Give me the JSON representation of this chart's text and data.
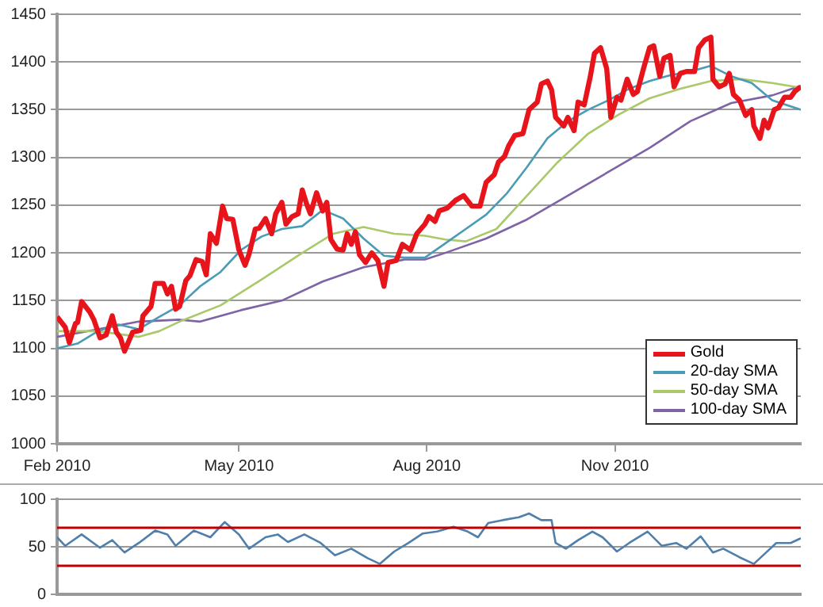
{
  "chart_data": [
    {
      "type": "line",
      "xlim": [
        "2010-02-01",
        "2011-01-31"
      ],
      "ylim": [
        1000,
        1450
      ],
      "xticks": [
        {
          "value": "2010-02-01",
          "label": "Feb 2010"
        },
        {
          "value": "2010-05-01",
          "label": "May 2010"
        },
        {
          "value": "2010-08-01",
          "label": "Aug 2010"
        },
        {
          "value": "2010-11-01",
          "label": "Nov 2010"
        }
      ],
      "yticks": [
        1000,
        1050,
        1100,
        1150,
        1200,
        1250,
        1300,
        1350,
        1400,
        1450
      ],
      "grid": "y",
      "legend": "bottom right",
      "series": [
        {
          "name": "Gold",
          "color": "#e8141b",
          "x": [
            "2010-02-01",
            "2010-02-05",
            "2010-02-07",
            "2010-02-10",
            "2010-02-11",
            "2010-02-13",
            "2010-02-17",
            "2010-02-19",
            "2010-02-22",
            "2010-02-25",
            "2010-02-28",
            "2010-03-02",
            "2010-03-04",
            "2010-03-06",
            "2010-03-10",
            "2010-03-14",
            "2010-03-15",
            "2010-03-19",
            "2010-03-21",
            "2010-03-25",
            "2010-03-27",
            "2010-03-29",
            "2010-03-31",
            "2010-04-02",
            "2010-04-05",
            "2010-04-07",
            "2010-04-10",
            "2010-04-13",
            "2010-04-15",
            "2010-04-17",
            "2010-04-20",
            "2010-04-23",
            "2010-04-25",
            "2010-04-28",
            "2010-05-01",
            "2010-05-04",
            "2010-05-06",
            "2010-05-09",
            "2010-05-11",
            "2010-05-14",
            "2010-05-17",
            "2010-05-19",
            "2010-05-22",
            "2010-05-24",
            "2010-05-27",
            "2010-05-30",
            "2010-06-01",
            "2010-06-03",
            "2010-06-05",
            "2010-06-08",
            "2010-06-11",
            "2010-06-13",
            "2010-06-15",
            "2010-06-18",
            "2010-06-21",
            "2010-06-23",
            "2010-06-25",
            "2010-06-27",
            "2010-06-29",
            "2010-07-02",
            "2010-07-05",
            "2010-07-08",
            "2010-07-11",
            "2010-07-13",
            "2010-07-17",
            "2010-07-20",
            "2010-07-24",
            "2010-07-27",
            "2010-07-31",
            "2010-08-02",
            "2010-08-05",
            "2010-08-07",
            "2010-08-11",
            "2010-08-15",
            "2010-08-19",
            "2010-08-23",
            "2010-08-27",
            "2010-08-30",
            "2010-09-03",
            "2010-09-05",
            "2010-09-08",
            "2010-09-10",
            "2010-09-13",
            "2010-09-17",
            "2010-09-20",
            "2010-09-24",
            "2010-09-26",
            "2010-09-29",
            "2010-10-01",
            "2010-10-03",
            "2010-10-07",
            "2010-10-09",
            "2010-10-12",
            "2010-10-14",
            "2010-10-17",
            "2010-10-20",
            "2010-10-22",
            "2010-10-25",
            "2010-10-28",
            "2010-10-30",
            "2010-11-02",
            "2010-11-04",
            "2010-11-07",
            "2010-11-10",
            "2010-11-12",
            "2010-11-15",
            "2010-11-18",
            "2010-11-20",
            "2010-11-23",
            "2010-11-25",
            "2010-11-28",
            "2010-11-30",
            "2010-12-03",
            "2010-12-06",
            "2010-12-10",
            "2010-12-12",
            "2010-12-15",
            "2010-12-18",
            "2010-12-19",
            "2010-12-22",
            "2010-12-25",
            "2010-12-27",
            "2010-12-29",
            "2011-01-01",
            "2011-01-04",
            "2011-01-07",
            "2011-01-08",
            "2011-01-11",
            "2011-01-13",
            "2011-01-15",
            "2011-01-18",
            "2011-01-20",
            "2011-01-23",
            "2011-01-26",
            "2011-01-28",
            "2011-01-31"
          ],
          "values": [
            1133,
            1122,
            1106,
            1126,
            1127,
            1149,
            1138,
            1130,
            1111,
            1114,
            1134,
            1117,
            1111,
            1097,
            1117,
            1119,
            1134,
            1144,
            1168,
            1168,
            1157,
            1165,
            1141,
            1144,
            1171,
            1176,
            1193,
            1191,
            1177,
            1220,
            1210,
            1249,
            1236,
            1235,
            1203,
            1187,
            1199,
            1225,
            1226,
            1236,
            1220,
            1241,
            1253,
            1230,
            1238,
            1241,
            1266,
            1252,
            1241,
            1263,
            1244,
            1253,
            1214,
            1204,
            1203,
            1220,
            1209,
            1222,
            1198,
            1190,
            1200,
            1192,
            1165,
            1190,
            1192,
            1209,
            1203,
            1220,
            1230,
            1238,
            1233,
            1244,
            1247,
            1255,
            1260,
            1249,
            1249,
            1274,
            1282,
            1295,
            1301,
            1312,
            1323,
            1325,
            1350,
            1358,
            1377,
            1380,
            1371,
            1342,
            1333,
            1342,
            1328,
            1358,
            1355,
            1385,
            1409,
            1415,
            1393,
            1342,
            1363,
            1360,
            1382,
            1366,
            1369,
            1393,
            1415,
            1417,
            1385,
            1404,
            1407,
            1374,
            1388,
            1390,
            1390,
            1415,
            1423,
            1426,
            1382,
            1374,
            1377,
            1388,
            1366,
            1360,
            1344,
            1350,
            1333,
            1320,
            1339,
            1331,
            1350,
            1352,
            1363,
            1363,
            1369,
            1374
          ]
        },
        {
          "name": "20-day SMA",
          "color": "#4a9bb5",
          "x": [
            "2010-02-01",
            "2010-02-11",
            "2010-02-21",
            "2010-03-03",
            "2010-03-13",
            "2010-03-23",
            "2010-04-02",
            "2010-04-12",
            "2010-04-22",
            "2010-05-02",
            "2010-05-12",
            "2010-05-22",
            "2010-06-01",
            "2010-06-11",
            "2010-06-21",
            "2010-07-01",
            "2010-07-11",
            "2010-07-21",
            "2010-07-31",
            "2010-08-10",
            "2010-08-20",
            "2010-08-30",
            "2010-09-09",
            "2010-09-19",
            "2010-09-29",
            "2010-10-09",
            "2010-10-19",
            "2010-10-29",
            "2010-11-08",
            "2010-11-18",
            "2010-11-28",
            "2010-12-08",
            "2010-12-18",
            "2010-12-28",
            "2011-01-07",
            "2011-01-17",
            "2011-01-31"
          ],
          "values": [
            1100,
            1105,
            1118,
            1125,
            1120,
            1133,
            1145,
            1165,
            1180,
            1203,
            1217,
            1225,
            1228,
            1245,
            1236,
            1215,
            1197,
            1195,
            1195,
            1210,
            1225,
            1240,
            1262,
            1290,
            1320,
            1338,
            1350,
            1360,
            1372,
            1380,
            1386,
            1390,
            1396,
            1385,
            1378,
            1360,
            1350
          ]
        },
        {
          "name": "50-day SMA",
          "color": "#a9c96a",
          "x": [
            "2010-02-01",
            "2010-02-21",
            "2010-03-13",
            "2010-03-23",
            "2010-04-02",
            "2010-04-22",
            "2010-05-12",
            "2010-06-01",
            "2010-06-16",
            "2010-07-01",
            "2010-07-16",
            "2010-07-31",
            "2010-08-10",
            "2010-08-20",
            "2010-09-04",
            "2010-09-19",
            "2010-10-04",
            "2010-10-19",
            "2010-11-03",
            "2010-11-18",
            "2010-12-03",
            "2010-12-18",
            "2011-01-02",
            "2011-01-17",
            "2011-01-31"
          ],
          "values": [
            1118,
            1118,
            1112,
            1118,
            1128,
            1145,
            1172,
            1200,
            1220,
            1227,
            1220,
            1218,
            1214,
            1212,
            1225,
            1260,
            1295,
            1325,
            1345,
            1362,
            1372,
            1380,
            1382,
            1378,
            1373
          ]
        },
        {
          "name": "100-day SMA",
          "color": "#7e64a6",
          "x": [
            "2010-02-01",
            "2010-02-21",
            "2010-03-13",
            "2010-04-02",
            "2010-04-12",
            "2010-05-02",
            "2010-05-22",
            "2010-06-11",
            "2010-07-01",
            "2010-07-21",
            "2010-07-31",
            "2010-08-10",
            "2010-08-30",
            "2010-09-19",
            "2010-10-09",
            "2010-10-29",
            "2010-11-18",
            "2010-12-08",
            "2010-12-28",
            "2011-01-17",
            "2011-01-31"
          ],
          "values": [
            1112,
            1120,
            1128,
            1130,
            1128,
            1140,
            1150,
            1170,
            1185,
            1193,
            1193,
            1200,
            1215,
            1235,
            1260,
            1285,
            1310,
            1338,
            1357,
            1365,
            1375
          ]
        }
      ]
    },
    {
      "type": "line",
      "xlim": [
        "2010-02-01",
        "2011-01-31"
      ],
      "ylim": [
        0,
        100
      ],
      "yticks": [
        0,
        50,
        100
      ],
      "grid": "y",
      "tick_labels": "y",
      "ref_lines": [
        {
          "axis": "y",
          "value": 70,
          "color": "#c00000"
        },
        {
          "axis": "y",
          "value": 30,
          "color": "#c00000"
        }
      ],
      "series": [
        {
          "color": "#4f7fab",
          "x": [
            "2010-02-01",
            "2010-02-05",
            "2010-02-13",
            "2010-02-22",
            "2010-02-28",
            "2010-03-06",
            "2010-03-13",
            "2010-03-21",
            "2010-03-27",
            "2010-03-31",
            "2010-04-09",
            "2010-04-17",
            "2010-04-24",
            "2010-05-01",
            "2010-05-06",
            "2010-05-14",
            "2010-05-20",
            "2010-05-25",
            "2010-06-02",
            "2010-06-10",
            "2010-06-17",
            "2010-06-25",
            "2010-07-03",
            "2010-07-09",
            "2010-07-16",
            "2010-07-23",
            "2010-07-30",
            "2010-08-06",
            "2010-08-14",
            "2010-08-21",
            "2010-08-26",
            "2010-08-31",
            "2010-09-07",
            "2010-09-15",
            "2010-09-20",
            "2010-09-26",
            "2010-10-01",
            "2010-10-03",
            "2010-10-08",
            "2010-10-14",
            "2010-10-21",
            "2010-10-26",
            "2010-11-02",
            "2010-11-08",
            "2010-11-17",
            "2010-11-24",
            "2010-12-01",
            "2010-12-06",
            "2010-12-13",
            "2010-12-19",
            "2010-12-24",
            "2011-01-01",
            "2011-01-08",
            "2011-01-13",
            "2011-01-19",
            "2011-01-26",
            "2011-01-31"
          ],
          "values": [
            60,
            51,
            63,
            49,
            57,
            44,
            54,
            67,
            63,
            51,
            67,
            60,
            76,
            63,
            48,
            60,
            63,
            55,
            63,
            54,
            41,
            48,
            38,
            32,
            45,
            54,
            64,
            66,
            71,
            66,
            60,
            75,
            78,
            81,
            85,
            78,
            78,
            54,
            48,
            57,
            66,
            60,
            45,
            54,
            66,
            51,
            54,
            48,
            61,
            44,
            48,
            39,
            32,
            42,
            54,
            54,
            59
          ]
        }
      ]
    }
  ]
}
